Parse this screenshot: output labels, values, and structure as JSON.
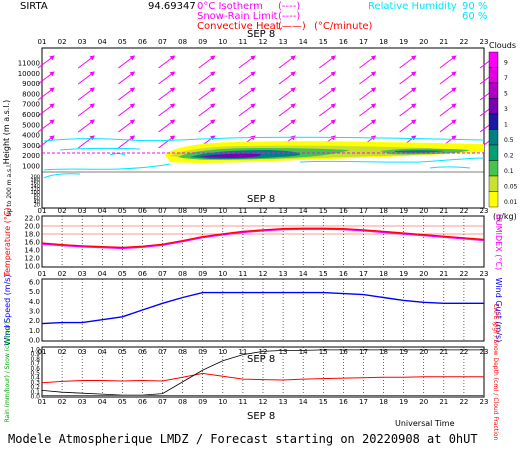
{
  "header": {
    "station": "SIRTA",
    "station_value": "94.69347",
    "legend_isotherm": "0°C Isotherm",
    "legend_snow_rain": "Snow-Rain Limit",
    "legend_convective": "Convective Heat.",
    "legend_unit": "(°C/minute)",
    "legend_dash": "(----)",
    "legend_solid": "(——)",
    "rh_label": "Relative Humidity",
    "rh_90": "90 %",
    "rh_60": "60 %"
  },
  "date_label": "SEP 8",
  "hours": [
    "01",
    "02",
    "03",
    "04",
    "05",
    "06",
    "07",
    "08",
    "09",
    "10",
    "11",
    "12",
    "13",
    "14",
    "15",
    "16",
    "17",
    "18",
    "19",
    "20",
    "21",
    "22",
    "23"
  ],
  "footer": {
    "universal_time": "Universal Time",
    "model_line": "Modele Atmospherique LMDZ / Forecast starting on 20220908 at 0hUT"
  },
  "colors": {
    "magenta": "#ff00ff",
    "cyan": "#00e5ff",
    "red": "#ff0000",
    "blue": "#0000ff",
    "green": "#00aa00"
  },
  "chart_data": [
    {
      "type": "heatmap",
      "name": "clouds-height",
      "ylabel": "Height (m a.s.l.)",
      "ylabel_low": "Up to 200 m a.s.l.",
      "yticks_upper": [
        "1000",
        "2000",
        "3000",
        "4000",
        "5000",
        "6000",
        "7000",
        "8000",
        "9000",
        "10000",
        "11000"
      ],
      "yticks_lower": [
        "20",
        "40",
        "60",
        "80",
        "100",
        "120",
        "140",
        "160",
        "180",
        "200"
      ],
      "legend_title": "Clouds",
      "legend_unit": "(g/kg)",
      "legend_levels": [
        "9",
        "7",
        "5",
        "3",
        "1",
        "0.5",
        "0.2",
        "0.1",
        "0.05",
        "0.01"
      ],
      "legend_colors": [
        "#ff00ff",
        "#e000e0",
        "#b000c8",
        "#7a00b4",
        "#1a1aa6",
        "#008080",
        "#00a070",
        "#44c44c",
        "#c8e030",
        "#ffff00"
      ]
    },
    {
      "type": "line",
      "name": "temperature",
      "ylabel": "Temperature (°C)",
      "ylabel_right": "HUMIDEX (°C)",
      "yticks": [
        "10.0",
        "12.0",
        "14.0",
        "16.0",
        "18.0",
        "20.0",
        "22.0"
      ],
      "ylim": [
        10,
        22
      ],
      "series": [
        {
          "values": [
            15.7,
            15.3,
            15.0,
            14.8,
            14.6,
            14.9,
            15.4,
            16.3,
            17.3,
            18.0,
            18.6,
            19.0,
            19.3,
            19.4,
            19.4,
            19.3,
            19.0,
            18.6,
            18.2,
            17.8,
            17.4,
            17.0,
            16.6
          ]
        }
      ]
    },
    {
      "type": "line",
      "name": "wind",
      "ylabel": "Wind Speed (m/s)",
      "ylabel_right": "Wind Gust (m/s)",
      "yticks": [
        "0.0",
        "1.0",
        "2.0",
        "3.0",
        "4.0",
        "5.0",
        "6.0"
      ],
      "ylim": [
        0,
        6
      ],
      "series": [
        {
          "values": [
            1.7,
            1.8,
            1.8,
            2.1,
            2.4,
            3.1,
            3.8,
            4.4,
            4.9,
            4.9,
            4.9,
            4.9,
            4.9,
            4.9,
            4.9,
            4.8,
            4.7,
            4.4,
            4.1,
            3.9,
            3.8,
            3.8,
            3.8
          ]
        }
      ]
    },
    {
      "type": "line",
      "name": "rain-snow-cape",
      "ylabel": "Rain (mm/hour) / Snow (cm/hour)",
      "ylabel_right": "CAPE (J/g) / Snow Depth (cm) / Cloud Fraction",
      "yticks": [
        "0.0",
        "0.1",
        "0.2",
        "0.3",
        "0.4",
        "0.5",
        "0.6",
        "0.7",
        "0.8",
        "0.9",
        "1.0"
      ],
      "ylim": [
        0,
        1
      ],
      "series": [
        {
          "values": [
            0.28,
            0.31,
            0.33,
            0.33,
            0.32,
            0.33,
            0.32,
            0.4,
            0.48,
            0.42,
            0.36,
            0.35,
            0.34,
            0.36,
            0.37,
            0.38,
            0.39,
            0.4,
            0.4,
            0.41,
            0.41,
            0.41,
            0.41
          ]
        },
        {
          "values": [
            0.12,
            0.08,
            0.06,
            0.04,
            0.02,
            0.02,
            0.05,
            0.3,
            0.55,
            0.75,
            0.88,
            0.95,
            0.97,
            0.97,
            0.98,
            0.98,
            0.98,
            0.98,
            0.98,
            0.98,
            0.98,
            0.98,
            0.98
          ]
        },
        {
          "values": [
            0.01,
            0.01,
            0.01,
            0.01,
            0.01,
            0.01,
            0.01,
            0.01,
            0.01,
            0.01,
            0.01,
            0.01,
            0.01,
            0.01,
            0.01,
            0.01,
            0.01,
            0.01,
            0.01,
            0.01,
            0.01,
            0.01,
            0.01
          ]
        }
      ]
    }
  ]
}
